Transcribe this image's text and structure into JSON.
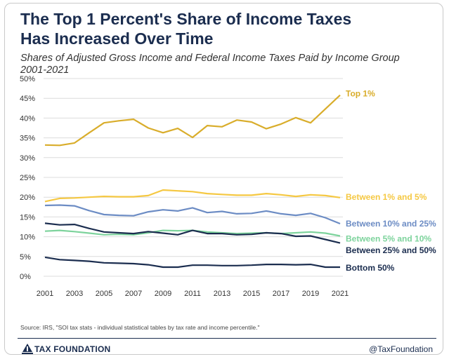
{
  "title_line1": "The Top 1 Percent's Share of Income Taxes",
  "title_line2": "Has Increased Over Time",
  "subtitle_line1": "Shares of Adjusted Gross Income and Federal Income Taxes Paid by Income Group",
  "subtitle_line2": "2001-2021",
  "source": "Source: IRS, \"SOI tax stats - individual statistical tables by tax rate and income percentile.\"",
  "brand": "TAX FOUNDATION",
  "handle": "@TaxFoundation",
  "chart_data": {
    "type": "line",
    "x": [
      2001,
      2002,
      2003,
      2004,
      2005,
      2006,
      2007,
      2008,
      2009,
      2010,
      2011,
      2012,
      2013,
      2014,
      2015,
      2016,
      2017,
      2018,
      2019,
      2020,
      2021
    ],
    "xticks": [
      "2001",
      "2003",
      "2005",
      "2007",
      "2009",
      "2011",
      "2013",
      "2015",
      "2017",
      "2019",
      "2021"
    ],
    "yticks": [
      "0%",
      "5%",
      "10%",
      "15%",
      "20%",
      "25%",
      "30%",
      "35%",
      "40%",
      "45%",
      "50%"
    ],
    "ylim": [
      0,
      50
    ],
    "xlim": [
      2001,
      2021
    ],
    "grid": true,
    "series": [
      {
        "name": "Top 1%",
        "color": "#d9ad2b",
        "values": [
          33.2,
          33.1,
          33.7,
          36.3,
          38.8,
          39.3,
          39.7,
          37.5,
          36.3,
          37.4,
          35.1,
          38.1,
          37.8,
          39.5,
          39.0,
          37.3,
          38.5,
          40.1,
          38.8,
          42.3,
          45.8
        ]
      },
      {
        "name": "Between 1% and 5%",
        "color": "#f5c842",
        "values": [
          18.9,
          19.7,
          19.8,
          20.0,
          20.2,
          20.1,
          20.1,
          20.4,
          21.8,
          21.6,
          21.4,
          20.9,
          20.7,
          20.5,
          20.5,
          20.9,
          20.6,
          20.2,
          20.6,
          20.4,
          19.9
        ]
      },
      {
        "name": "Between 10% and 25%",
        "color": "#6c8cc4",
        "values": [
          17.9,
          18.0,
          17.8,
          16.6,
          15.6,
          15.4,
          15.3,
          16.3,
          16.8,
          16.5,
          17.3,
          16.1,
          16.4,
          15.8,
          15.9,
          16.5,
          15.8,
          15.4,
          15.9,
          14.8,
          13.3
        ]
      },
      {
        "name": "Between 5% and 10%",
        "color": "#7dd39c",
        "values": [
          11.4,
          11.6,
          11.3,
          10.9,
          10.5,
          10.6,
          10.5,
          11.0,
          11.6,
          11.5,
          11.6,
          11.2,
          11.0,
          10.8,
          10.9,
          11.0,
          10.8,
          11.0,
          11.2,
          10.9,
          10.2
        ]
      },
      {
        "name": "Between 25% and 50%",
        "color": "#1b2d4f",
        "values": [
          13.4,
          13.0,
          13.1,
          12.1,
          11.2,
          11.0,
          10.8,
          11.3,
          10.9,
          10.5,
          11.6,
          10.8,
          10.8,
          10.5,
          10.6,
          11.0,
          10.8,
          10.1,
          10.2,
          9.3,
          8.4
        ]
      },
      {
        "name": "Bottom 50%",
        "color": "#1b2d4f",
        "values": [
          4.8,
          4.2,
          4.0,
          3.8,
          3.4,
          3.3,
          3.2,
          2.9,
          2.3,
          2.3,
          2.8,
          2.8,
          2.7,
          2.7,
          2.8,
          3.0,
          3.0,
          2.9,
          3.0,
          2.3,
          2.3
        ]
      }
    ]
  }
}
